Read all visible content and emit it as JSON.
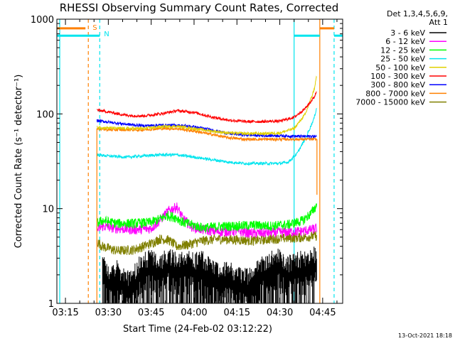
{
  "chart_data": {
    "type": "line",
    "title": "RHESSI Observing Summary Count Rates, Corrected",
    "xlabel": "Start Time (24-Feb-02 03:12:22)",
    "ylabel": "Corrected Count Rate (s⁻¹ detector⁻¹)",
    "y_scale": "log",
    "ylim": [
      1,
      1000
    ],
    "xlim": [
      "03:12",
      "04:52"
    ],
    "x_ticks": [
      "03:15",
      "03:30",
      "03:45",
      "04:00",
      "04:15",
      "04:30",
      "04:45"
    ],
    "y_ticks": [
      "1",
      "10",
      "100",
      "1000"
    ],
    "legend_header": [
      "Det 1,3,4,5,6,9,",
      "Att 1"
    ],
    "legend_position": "right",
    "footer": "13-Oct-2021 18:18",
    "markers": [
      {
        "label": "S",
        "color": "#ff8000"
      },
      {
        "label": "N",
        "color": "#00e5ee"
      }
    ],
    "bars": [
      {
        "name": "orange",
        "color": "#ff8000",
        "y": 800,
        "segments": [
          [
            "03:12",
            "03:22"
          ],
          [
            "04:44",
            "04:49"
          ]
        ]
      },
      {
        "name": "cyan",
        "color": "#00e5ee",
        "y": 670,
        "segments": [
          [
            "03:12",
            "03:27"
          ],
          [
            "04:35",
            "04:44"
          ],
          [
            "04:49",
            "04:52"
          ]
        ]
      }
    ],
    "vlines": [
      {
        "x": "03:13",
        "color": "#00e5ee",
        "style": "solid"
      },
      {
        "x": "03:23",
        "color": "#ff8000",
        "style": "dashed"
      },
      {
        "x": "03:27",
        "color": "#00e5ee",
        "style": "dashed"
      },
      {
        "x": "04:35",
        "color": "#00e5ee",
        "style": "solid"
      },
      {
        "x": "04:44",
        "color": "#ff8000",
        "style": "solid"
      },
      {
        "x": "04:49",
        "color": "#00e5ee",
        "style": "dashed"
      }
    ],
    "series": [
      {
        "name": "3 - 6 keV",
        "color": "#000000",
        "x": [
          "03:28",
          "03:30",
          "03:33",
          "03:36",
          "03:39",
          "03:42",
          "03:45",
          "03:48",
          "03:51",
          "03:54",
          "03:57",
          "04:00",
          "04:03",
          "04:06",
          "04:09",
          "04:12",
          "04:15",
          "04:18",
          "04:21",
          "04:24",
          "04:27",
          "04:30",
          "04:33",
          "04:36",
          "04:39",
          "04:42",
          "04:43"
        ],
        "values": [
          2.5,
          1.8,
          2.2,
          1.6,
          1.9,
          2.5,
          2.7,
          2.4,
          2.8,
          2.6,
          2.8,
          2.5,
          2.6,
          2.2,
          1.9,
          2.0,
          1.8,
          1.7,
          1.9,
          2.4,
          2.6,
          2.8,
          2.3,
          2.5,
          2.7,
          2.9,
          3.0
        ],
        "noisy": true
      },
      {
        "name": "6 - 12 keV",
        "color": "#ff00ff",
        "x": [
          "03:26",
          "03:28",
          "03:33",
          "03:39",
          "03:45",
          "03:48",
          "03:51",
          "03:54",
          "03:56",
          "03:59",
          "04:03",
          "04:09",
          "04:15",
          "04:21",
          "04:27",
          "04:33",
          "04:38",
          "04:41",
          "04:43"
        ],
        "values": [
          6.0,
          6.5,
          6.2,
          6.0,
          6.2,
          7.5,
          9.5,
          10.5,
          8.0,
          6.5,
          6.0,
          5.7,
          5.8,
          5.5,
          5.6,
          5.7,
          5.8,
          6.0,
          6.3
        ]
      },
      {
        "name": "12 - 25 keV",
        "color": "#00ff00",
        "x": [
          "03:26",
          "03:28",
          "03:33",
          "03:39",
          "03:45",
          "03:48",
          "03:51",
          "03:54",
          "03:56",
          "03:59",
          "04:03",
          "04:09",
          "04:15",
          "04:21",
          "04:27",
          "04:33",
          "04:38",
          "04:41",
          "04:43"
        ],
        "values": [
          7.0,
          7.5,
          7.0,
          7.0,
          7.2,
          7.8,
          8.5,
          8.0,
          7.2,
          6.8,
          6.3,
          6.5,
          6.6,
          6.7,
          6.6,
          6.8,
          7.5,
          9.0,
          11.0
        ]
      },
      {
        "name": "25 - 50 keV",
        "color": "#00e5ee",
        "x": [
          "03:26",
          "03:30",
          "03:36",
          "03:42",
          "03:48",
          "03:54",
          "04:00",
          "04:06",
          "04:12",
          "04:18",
          "04:24",
          "04:30",
          "04:33",
          "04:36",
          "04:39",
          "04:42",
          "04:43"
        ],
        "values": [
          37,
          36,
          35,
          36,
          37,
          37,
          35,
          33,
          31,
          30,
          30,
          30,
          31,
          38,
          55,
          90,
          120
        ]
      },
      {
        "name": "50 - 100 keV",
        "color": "#e0d000",
        "x": [
          "03:26",
          "03:30",
          "03:36",
          "03:42",
          "03:48",
          "03:54",
          "04:00",
          "04:06",
          "04:12",
          "04:18",
          "04:24",
          "04:30",
          "04:35",
          "04:39",
          "04:42",
          "04:43"
        ],
        "values": [
          72,
          71,
          70,
          70,
          73,
          74,
          70,
          66,
          63,
          62,
          62,
          63,
          70,
          100,
          180,
          260
        ]
      },
      {
        "name": "100 - 300 keV",
        "color": "#ff0000",
        "x": [
          "03:26",
          "03:30",
          "03:36",
          "03:42",
          "03:48",
          "03:54",
          "04:00",
          "04:06",
          "04:12",
          "04:18",
          "04:24",
          "04:30",
          "04:35",
          "04:39",
          "04:42",
          "04:43"
        ],
        "values": [
          110,
          105,
          97,
          95,
          100,
          108,
          104,
          93,
          86,
          83,
          83,
          84,
          92,
          115,
          150,
          175
        ]
      },
      {
        "name": "300 - 800 keV",
        "color": "#0000ff",
        "x": [
          "03:26",
          "03:30",
          "03:36",
          "03:42",
          "03:48",
          "03:54",
          "04:00",
          "04:06",
          "04:12",
          "04:18",
          "04:24",
          "04:30",
          "04:36",
          "04:42",
          "04:43"
        ],
        "values": [
          85,
          82,
          78,
          75,
          76,
          76,
          73,
          68,
          62,
          60,
          59,
          59,
          58,
          58,
          58
        ]
      },
      {
        "name": "800 - 7000 keV",
        "color": "#ff8000",
        "x": [
          "03:26",
          "03:30",
          "03:36",
          "03:42",
          "03:48",
          "03:54",
          "04:00",
          "04:06",
          "04:12",
          "04:18",
          "04:24",
          "04:30",
          "04:36",
          "04:42",
          "04:43"
        ],
        "values": [
          70,
          68,
          68,
          68,
          70,
          70,
          66,
          61,
          56,
          54,
          54,
          54,
          54,
          54,
          54
        ]
      },
      {
        "name": "7000 - 15000 keV",
        "color": "#808000",
        "x": [
          "03:26",
          "03:28",
          "03:33",
          "03:39",
          "03:45",
          "03:48",
          "03:51",
          "03:54",
          "03:58",
          "04:03",
          "04:09",
          "04:15",
          "04:21",
          "04:27",
          "04:33",
          "04:38",
          "04:43"
        ],
        "values": [
          4.5,
          4.0,
          3.6,
          3.7,
          4.3,
          4.8,
          4.7,
          4.0,
          4.2,
          4.6,
          4.8,
          4.7,
          4.6,
          4.8,
          4.9,
          5.0,
          5.2
        ]
      }
    ]
  }
}
